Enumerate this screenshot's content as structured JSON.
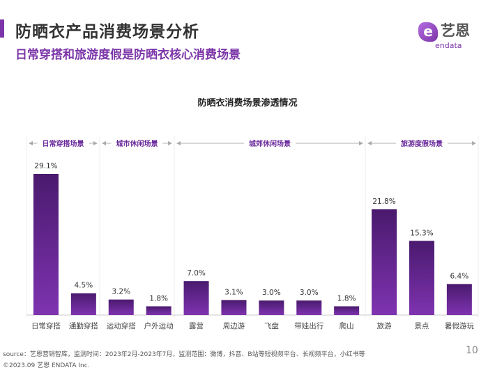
{
  "header": {
    "title": "防晒衣产品消费场景分析",
    "subtitle": "日常穿搭和旅游度假是防晒衣核心消费场景"
  },
  "logo": {
    "cn": "艺恩",
    "en": "endata",
    "mark": "e"
  },
  "chart_data": {
    "type": "bar",
    "title": "防晒衣消费场景渗透情况",
    "categories": [
      "日常穿搭",
      "通勤穿搭",
      "运动穿搭",
      "户外运动",
      "露营",
      "周边游",
      "飞盘",
      "带娃出行",
      "爬山",
      "旅游",
      "景点",
      "暑假游玩"
    ],
    "values": [
      29.1,
      4.5,
      3.2,
      1.8,
      7.0,
      3.1,
      3.0,
      3.0,
      1.8,
      21.8,
      15.3,
      6.4
    ],
    "value_labels": [
      "29.1%",
      "4.5%",
      "3.2%",
      "1.8%",
      "7.0%",
      "3.1%",
      "3.0%",
      "3.0%",
      "1.8%",
      "21.8%",
      "15.3%",
      "6.4%"
    ],
    "groups": [
      {
        "name": "日常穿搭场景",
        "start": 0,
        "end": 1
      },
      {
        "name": "城市休闲场景",
        "start": 2,
        "end": 3
      },
      {
        "name": "城郊休闲场景",
        "start": 4,
        "end": 8
      },
      {
        "name": "旅游度假场景",
        "start": 9,
        "end": 11
      }
    ],
    "ylim": [
      0,
      30
    ],
    "xlabel": "",
    "ylabel": "",
    "grid": false,
    "colors": {
      "bar_top": "#4a1a6e",
      "bar_bottom": "#7e33b0",
      "group_label": "#6a2a9a"
    }
  },
  "footer": {
    "source": "source：艺恩营销智库，监测时间：2023年2月-2023年7月，监测范围：微博，抖音、B站等短视频平台、长视频平台，小红书等",
    "copyright": "©2023.09 艺恩 ENDATA Inc.",
    "page": "10"
  }
}
